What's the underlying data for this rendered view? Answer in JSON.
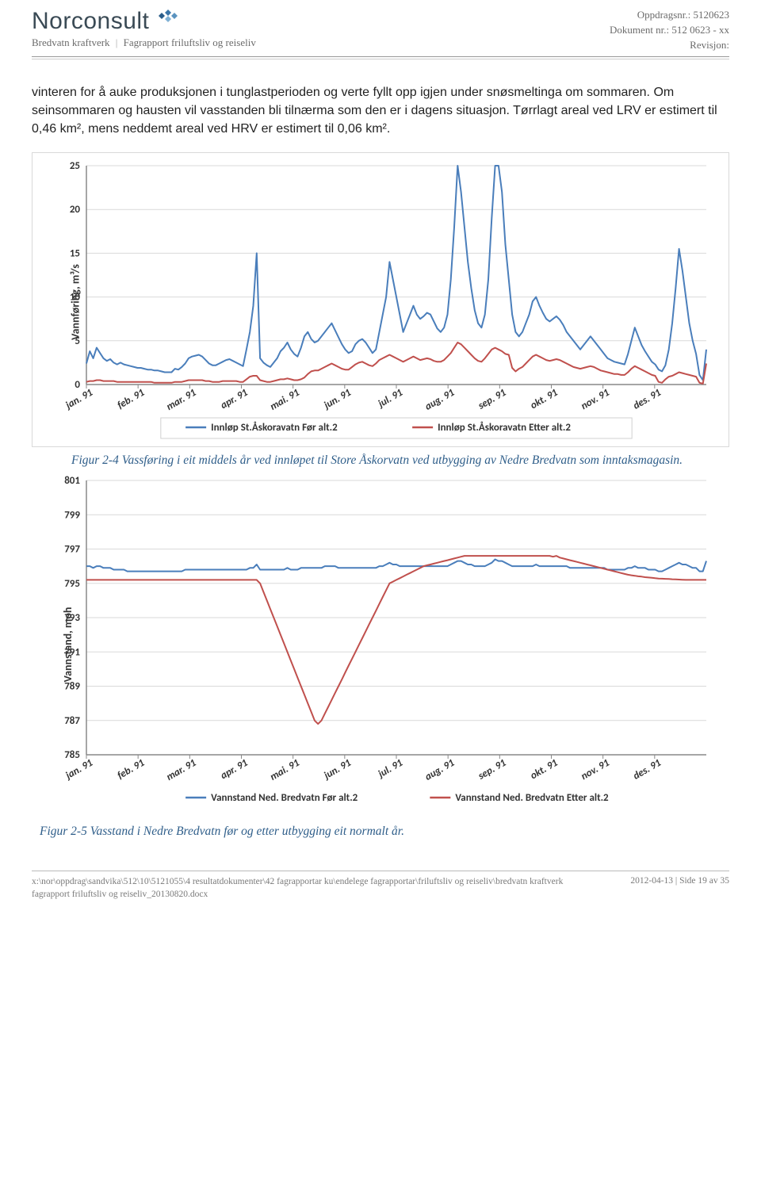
{
  "header": {
    "company": "Norconsult",
    "sub_left": "Bredvatn kraftverk",
    "sub_right": "Fagrapport friluftsliv og reiseliv",
    "oppdrag_label": "Oppdragsnr.:",
    "oppdrag_value": "5120623",
    "dokument_label": "Dokument nr.:",
    "dokument_value": "512 0623 - xx",
    "revisjon_label": "Revisjon:"
  },
  "body_text": "vinteren for å auke produksjonen i tunglastperioden og verte fyllt opp igjen under snøsmeltinga om sommaren. Om seinsommaren og hausten vil vasstanden bli tilnærma som den er i dagens situasjon. Tørrlagt areal ved LRV er estimert til 0,46 km², mens neddemt areal ved HRV er estimert til 0,06 km².",
  "months": [
    "jan. 91",
    "feb. 91",
    "mar. 91",
    "apr. 91",
    "mai. 91",
    "jun. 91",
    "jul. 91",
    "aug. 91",
    "sep. 91",
    "okt. 91",
    "nov. 91",
    "des. 91"
  ],
  "chart1": {
    "y_label": "Vannføring, m³/s",
    "ylim": [
      0,
      25
    ],
    "ytick_step": 5,
    "legend_a": "Innløp St.Åskoravatn Før alt.2",
    "legend_b": "Innløp St.Åskoravatn Etter alt.2",
    "color_a": "#4a7ebb",
    "color_b": "#c0504d",
    "series_a": [
      2.4,
      3.8,
      3.0,
      4.2,
      3.6,
      3.0,
      2.7,
      2.9,
      2.5,
      2.3,
      2.5,
      2.3,
      2.2,
      2.1,
      2.0,
      1.9,
      1.9,
      1.8,
      1.7,
      1.7,
      1.6,
      1.6,
      1.5,
      1.4,
      1.4,
      1.4,
      1.8,
      1.7,
      2.0,
      2.4,
      3.0,
      3.2,
      3.3,
      3.4,
      3.2,
      2.8,
      2.4,
      2.2,
      2.2,
      2.4,
      2.6,
      2.8,
      2.9,
      2.7,
      2.5,
      2.3,
      2.1,
      4.0,
      6.0,
      9.0,
      15.0,
      3.0,
      2.5,
      2.2,
      2.0,
      2.5,
      3.0,
      3.8,
      4.2,
      4.8,
      4.0,
      3.5,
      3.2,
      4.2,
      5.5,
      6.0,
      5.2,
      4.8,
      5.0,
      5.5,
      6.0,
      6.5,
      7.0,
      6.2,
      5.4,
      4.6,
      4.0,
      3.6,
      3.8,
      4.6,
      5.0,
      5.2,
      4.8,
      4.2,
      3.6,
      4.0,
      6.0,
      8.0,
      10.0,
      14.0,
      12.0,
      10.0,
      8.0,
      6.0,
      7.0,
      8.0,
      9.0,
      8.0,
      7.5,
      7.8,
      8.2,
      8.0,
      7.2,
      6.4,
      6.0,
      6.5,
      8.0,
      12.0,
      18.0,
      25.0,
      22.0,
      18.0,
      14.0,
      11.0,
      8.5,
      7.0,
      6.5,
      8.0,
      12.0,
      19.0,
      28.0,
      26.0,
      22.0,
      16.0,
      12.0,
      8.0,
      6.0,
      5.5,
      6.0,
      7.0,
      8.0,
      9.5,
      10.0,
      9.0,
      8.2,
      7.5,
      7.2,
      7.5,
      7.8,
      7.4,
      6.8,
      6.0,
      5.5,
      5.0,
      4.5,
      4.0,
      4.5,
      5.0,
      5.5,
      5.0,
      4.5,
      4.0,
      3.5,
      3.0,
      2.8,
      2.6,
      2.5,
      2.4,
      2.3,
      3.5,
      5.0,
      6.5,
      5.5,
      4.5,
      3.8,
      3.2,
      2.6,
      2.3,
      1.7,
      1.5,
      2.2,
      4.0,
      7.0,
      11.0,
      15.5,
      13.0,
      10.0,
      7.0,
      5.0,
      3.5,
      1.1,
      0.5,
      4.0
    ],
    "series_b": [
      0.3,
      0.4,
      0.4,
      0.5,
      0.5,
      0.4,
      0.4,
      0.4,
      0.4,
      0.3,
      0.3,
      0.3,
      0.3,
      0.3,
      0.3,
      0.3,
      0.3,
      0.3,
      0.3,
      0.3,
      0.2,
      0.2,
      0.2,
      0.2,
      0.2,
      0.2,
      0.3,
      0.3,
      0.3,
      0.4,
      0.5,
      0.5,
      0.5,
      0.5,
      0.5,
      0.4,
      0.4,
      0.3,
      0.3,
      0.3,
      0.4,
      0.4,
      0.4,
      0.4,
      0.4,
      0.3,
      0.3,
      0.6,
      0.9,
      1.0,
      1.0,
      0.5,
      0.4,
      0.3,
      0.3,
      0.4,
      0.5,
      0.6,
      0.6,
      0.7,
      0.6,
      0.5,
      0.5,
      0.6,
      0.8,
      1.2,
      1.5,
      1.6,
      1.6,
      1.8,
      2.0,
      2.2,
      2.4,
      2.2,
      2.0,
      1.8,
      1.7,
      1.7,
      2.0,
      2.3,
      2.5,
      2.6,
      2.4,
      2.2,
      2.1,
      2.4,
      2.8,
      3.0,
      3.2,
      3.4,
      3.2,
      3.0,
      2.8,
      2.6,
      2.8,
      3.0,
      3.2,
      3.0,
      2.8,
      2.9,
      3.0,
      2.9,
      2.7,
      2.6,
      2.6,
      2.8,
      3.2,
      3.6,
      4.2,
      4.8,
      4.6,
      4.2,
      3.8,
      3.4,
      3.0,
      2.7,
      2.6,
      3.0,
      3.5,
      4.0,
      4.2,
      4.0,
      3.8,
      3.5,
      3.4,
      1.9,
      1.5,
      1.8,
      2.0,
      2.4,
      2.8,
      3.2,
      3.4,
      3.2,
      3.0,
      2.8,
      2.7,
      2.8,
      2.9,
      2.8,
      2.6,
      2.4,
      2.2,
      2.0,
      1.9,
      1.8,
      1.9,
      2.0,
      2.1,
      2.0,
      1.8,
      1.6,
      1.5,
      1.4,
      1.3,
      1.2,
      1.2,
      1.1,
      1.1,
      1.4,
      1.8,
      2.1,
      1.9,
      1.7,
      1.5,
      1.3,
      1.1,
      1.0,
      0.3,
      0.2,
      0.6,
      0.9,
      1.0,
      1.2,
      1.4,
      1.3,
      1.2,
      1.1,
      1.0,
      0.9,
      0.2,
      0.1,
      2.4
    ]
  },
  "caption1": "Figur 2-4 Vassføring i eit middels år ved innløpet til Store Åskorvatn ved utbygging av Nedre Bredvatn som inntaksmagasin.",
  "chart2": {
    "y_label": "Vannstand, moh",
    "ylim": [
      785,
      801
    ],
    "ytick_step": 2,
    "legend_a": "Vannstand Ned. Bredvatn Før alt.2",
    "legend_b": "Vannstand Ned. Bredvatn Etter alt.2",
    "color_a": "#4a7ebb",
    "color_b": "#c0504d",
    "series_a": [
      796.0,
      796.0,
      795.9,
      796.0,
      796.0,
      795.9,
      795.9,
      795.9,
      795.8,
      795.8,
      795.8,
      795.8,
      795.7,
      795.7,
      795.7,
      795.7,
      795.7,
      795.7,
      795.7,
      795.7,
      795.7,
      795.7,
      795.7,
      795.7,
      795.7,
      795.7,
      795.7,
      795.7,
      795.7,
      795.8,
      795.8,
      795.8,
      795.8,
      795.8,
      795.8,
      795.8,
      795.8,
      795.8,
      795.8,
      795.8,
      795.8,
      795.8,
      795.8,
      795.8,
      795.8,
      795.8,
      795.8,
      795.8,
      795.9,
      795.9,
      796.1,
      795.8,
      795.8,
      795.8,
      795.8,
      795.8,
      795.8,
      795.8,
      795.8,
      795.9,
      795.8,
      795.8,
      795.8,
      795.9,
      795.9,
      795.9,
      795.9,
      795.9,
      795.9,
      795.9,
      796.0,
      796.0,
      796.0,
      796.0,
      795.9,
      795.9,
      795.9,
      795.9,
      795.9,
      795.9,
      795.9,
      795.9,
      795.9,
      795.9,
      795.9,
      795.9,
      796.0,
      796.0,
      796.1,
      796.2,
      796.1,
      796.1,
      796.0,
      796.0,
      796.0,
      796.0,
      796.0,
      796.0,
      796.0,
      796.0,
      796.0,
      796.0,
      796.0,
      796.0,
      796.0,
      796.0,
      796.0,
      796.1,
      796.2,
      796.3,
      796.3,
      796.2,
      796.1,
      796.1,
      796.0,
      796.0,
      796.0,
      796.0,
      796.1,
      796.2,
      796.4,
      796.3,
      796.3,
      796.2,
      796.1,
      796.0,
      796.0,
      796.0,
      796.0,
      796.0,
      796.0,
      796.0,
      796.1,
      796.0,
      796.0,
      796.0,
      796.0,
      796.0,
      796.0,
      796.0,
      796.0,
      796.0,
      795.9,
      795.9,
      795.9,
      795.9,
      795.9,
      795.9,
      795.9,
      795.9,
      795.9,
      795.9,
      795.9,
      795.8,
      795.8,
      795.8,
      795.8,
      795.8,
      795.8,
      795.9,
      795.9,
      796.0,
      795.9,
      795.9,
      795.9,
      795.8,
      795.8,
      795.8,
      795.7,
      795.7,
      795.8,
      795.9,
      796.0,
      796.1,
      796.2,
      796.1,
      796.1,
      796.0,
      795.9,
      795.9,
      795.7,
      795.7,
      796.3
    ],
    "series_b": [
      795.2,
      795.2,
      795.2,
      795.2,
      795.2,
      795.2,
      795.2,
      795.2,
      795.2,
      795.2,
      795.2,
      795.2,
      795.2,
      795.2,
      795.2,
      795.2,
      795.2,
      795.2,
      795.2,
      795.2,
      795.2,
      795.2,
      795.2,
      795.2,
      795.2,
      795.2,
      795.2,
      795.2,
      795.2,
      795.2,
      795.2,
      795.2,
      795.2,
      795.2,
      795.2,
      795.2,
      795.2,
      795.2,
      795.2,
      795.2,
      795.2,
      795.2,
      795.2,
      795.2,
      795.2,
      795.2,
      795.2,
      795.2,
      795.2,
      795.2,
      795.2,
      795.0,
      794.5,
      794.0,
      793.5,
      793.0,
      792.5,
      792.0,
      791.5,
      791.0,
      790.5,
      790.0,
      789.5,
      789.0,
      788.5,
      788.0,
      787.5,
      787.0,
      786.8,
      787.0,
      787.4,
      787.8,
      788.2,
      788.6,
      789.0,
      789.4,
      789.8,
      790.2,
      790.6,
      791.0,
      791.4,
      791.8,
      792.2,
      792.6,
      793.0,
      793.4,
      793.8,
      794.2,
      794.6,
      795.0,
      795.1,
      795.2,
      795.3,
      795.4,
      795.5,
      795.6,
      795.7,
      795.8,
      795.9,
      796.0,
      796.05,
      796.1,
      796.15,
      796.2,
      796.25,
      796.3,
      796.35,
      796.4,
      796.45,
      796.5,
      796.55,
      796.6,
      796.6,
      796.6,
      796.6,
      796.6,
      796.6,
      796.6,
      796.6,
      796.6,
      796.6,
      796.6,
      796.6,
      796.6,
      796.6,
      796.6,
      796.6,
      796.6,
      796.6,
      796.6,
      796.6,
      796.6,
      796.6,
      796.6,
      796.6,
      796.6,
      796.6,
      796.55,
      796.6,
      796.5,
      796.45,
      796.4,
      796.35,
      796.3,
      796.25,
      796.2,
      796.15,
      796.1,
      796.05,
      796.0,
      795.95,
      795.9,
      795.85,
      795.8,
      795.75,
      795.7,
      795.65,
      795.6,
      795.55,
      795.5,
      795.47,
      795.44,
      795.41,
      795.39,
      795.36,
      795.34,
      795.32,
      795.3,
      795.28,
      795.27,
      795.26,
      795.25,
      795.24,
      795.23,
      795.22,
      795.21,
      795.2,
      795.2,
      795.2,
      795.2,
      795.2,
      795.2,
      795.2
    ]
  },
  "caption2": "Figur 2-5 Vasstand i Nedre Bredvatn før og etter utbygging eit normalt år.",
  "footer": {
    "path": "x:\\nor\\oppdrag\\sandvika\\512\\10\\5121055\\4 resultatdokumenter\\42 fagrapportar ku\\endelege fagrapportar\\friluftsliv og reiseliv\\bredvatn kraftverk fagrapport friluftsliv og reiseliv_20130820.docx",
    "right": "2012-04-13 | Side 19 av 35"
  }
}
